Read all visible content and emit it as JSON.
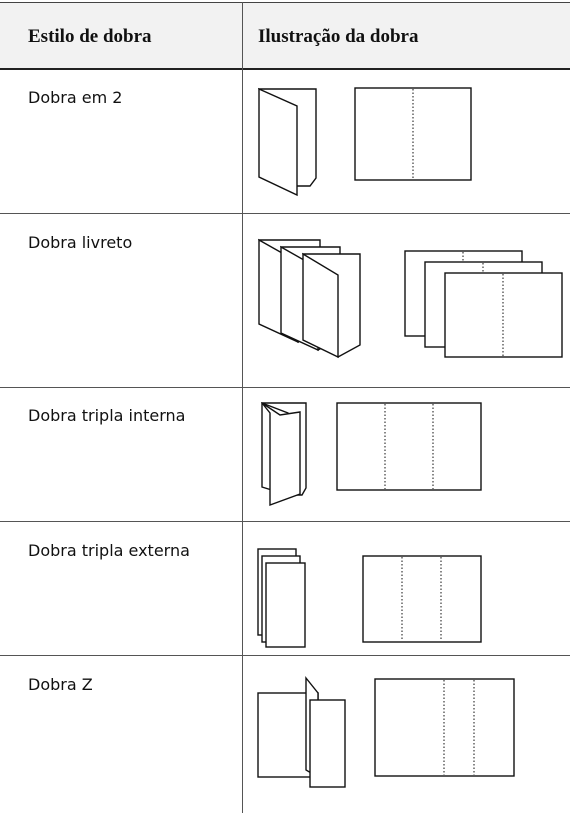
{
  "table": {
    "columns": [
      "Estilo de dobra",
      "Ilustração da dobra"
    ],
    "rows": [
      "Dobra em 2",
      "Dobra livreto",
      "Dobra tripla interna",
      "Dobra tripla externa",
      "Dobra Z"
    ]
  }
}
